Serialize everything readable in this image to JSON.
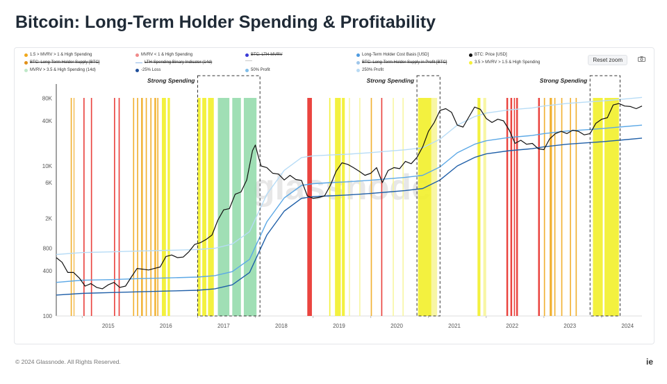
{
  "page": {
    "title": "Bitcoin: Long-Term Holder Spending & Profitability",
    "copyright": "© 2024 Glassnode. All Rights Reserved.",
    "brand": "ie",
    "watermark": "glassnode"
  },
  "toolbar": {
    "reset_zoom": "Reset zoom",
    "camera_icon": "camera-icon"
  },
  "colors": {
    "yellow": "#f2f02a",
    "lightyellow": "#f7f59a",
    "orange": "#f0a81c",
    "red": "#e8302a",
    "green": "#8fd9a8",
    "price": "#111111",
    "cost": "#1f5fa8",
    "band1": "#5ba8e6",
    "band2": "#b7dcf6"
  },
  "legend": [
    {
      "label": "1.5 > MVRV > 1 & High Spending",
      "color": "#f0a81c",
      "strike": false,
      "kind": "dot"
    },
    {
      "label": "MVRV < 1 & High Spending",
      "color": "#f08a8a",
      "strike": false,
      "kind": "dot"
    },
    {
      "label": "BTC: LTH-MVRV",
      "color": "#3a3ad6",
      "strike": true,
      "kind": "dot"
    },
    {
      "label": "Long-Term Holder Cost Basis [USD]",
      "color": "#4f9be0",
      "strike": false,
      "kind": "dot"
    },
    {
      "label": "BTC: Price [USD]",
      "color": "#111111",
      "strike": false,
      "kind": "dot"
    },
    {
      "label": "BTC: Long-Term Holder Supply [BTC]",
      "color": "#e0901a",
      "strike": true,
      "kind": "dot"
    },
    {
      "label": "LTH-Spending Binary Indicator (14d)",
      "color": "#8fb8e6",
      "strike": true,
      "kind": "line"
    },
    {
      "label": "",
      "color": "#c8c8c8",
      "strike": false,
      "kind": "line"
    },
    {
      "label": "BTC: Long-Term Holder Supply in Profit [BTC]",
      "color": "#9fc6ea",
      "strike": true,
      "kind": "dot"
    },
    {
      "label": "3.5 > MVRV > 1.5 & High Spending",
      "color": "#f6f03a",
      "strike": false,
      "kind": "dot"
    },
    {
      "label": "MVRV > 3.5 & High Spending (14d)",
      "color": "#bfe8c8",
      "strike": false,
      "kind": "dot"
    },
    {
      "label": "-25% Loss",
      "color": "#1f4f9a",
      "strike": false,
      "kind": "dot"
    },
    {
      "label": "50% Profit",
      "color": "#7fbde9",
      "strike": false,
      "kind": "dot"
    },
    {
      "label": "250% Profit",
      "color": "#b8daf4",
      "strike": false,
      "kind": "dot"
    }
  ],
  "chart_data": {
    "type": "line",
    "yscale": "log",
    "ylim": [
      100,
      100000
    ],
    "xlim": [
      2014.55,
      2024.7
    ],
    "yticks": [
      {
        "v": 100,
        "label": "100"
      },
      {
        "v": 400,
        "label": "400"
      },
      {
        "v": 800,
        "label": "800"
      },
      {
        "v": 2000,
        "label": "2K"
      },
      {
        "v": 6000,
        "label": "6K"
      },
      {
        "v": 10000,
        "label": "10K"
      },
      {
        "v": 40000,
        "label": "40K"
      },
      {
        "v": 80000,
        "label": "80K"
      }
    ],
    "xticks": [
      {
        "v": 2015,
        "label": "2015"
      },
      {
        "v": 2016,
        "label": "2016"
      },
      {
        "v": 2017,
        "label": "2017"
      },
      {
        "v": 2018,
        "label": "2018"
      },
      {
        "v": 2019,
        "label": "2019"
      },
      {
        "v": 2020,
        "label": "2020"
      },
      {
        "v": 2021,
        "label": "2021"
      },
      {
        "v": 2022,
        "label": "2022"
      },
      {
        "v": 2023,
        "label": "2023"
      },
      {
        "v": 2024,
        "label": "2024"
      }
    ],
    "annotations": [
      {
        "text": "Strong Spending",
        "x0": 2017.0,
        "x1": 2018.08
      },
      {
        "text": "Strong Spending",
        "x0": 2020.8,
        "x1": 2021.2
      },
      {
        "text": "Strong Spending",
        "x0": 2023.8,
        "x1": 2024.32
      }
    ],
    "series": [
      {
        "name": "BTC: Price [USD]",
        "color": "#111111",
        "x": [
          2014.55,
          2014.65,
          2014.75,
          2014.85,
          2014.95,
          2015.05,
          2015.15,
          2015.25,
          2015.35,
          2015.45,
          2015.55,
          2015.65,
          2015.75,
          2015.85,
          2015.95,
          2016.05,
          2016.15,
          2016.25,
          2016.35,
          2016.45,
          2016.55,
          2016.65,
          2016.75,
          2016.85,
          2016.95,
          2017.05,
          2017.15,
          2017.25,
          2017.35,
          2017.45,
          2017.55,
          2017.65,
          2017.75,
          2017.85,
          2017.95,
          2018.0,
          2018.05,
          2018.1,
          2018.2,
          2018.3,
          2018.4,
          2018.5,
          2018.6,
          2018.7,
          2018.8,
          2018.9,
          2019.0,
          2019.1,
          2019.2,
          2019.3,
          2019.4,
          2019.5,
          2019.6,
          2019.7,
          2019.8,
          2019.9,
          2020.0,
          2020.1,
          2020.2,
          2020.3,
          2020.4,
          2020.5,
          2020.6,
          2020.7,
          2020.8,
          2020.9,
          2021.0,
          2021.1,
          2021.2,
          2021.3,
          2021.4,
          2021.5,
          2021.6,
          2021.7,
          2021.8,
          2021.9,
          2022.0,
          2022.1,
          2022.2,
          2022.3,
          2022.4,
          2022.5,
          2022.6,
          2022.7,
          2022.8,
          2022.9,
          2023.0,
          2023.1,
          2023.2,
          2023.3,
          2023.4,
          2023.5,
          2023.6,
          2023.7,
          2023.8,
          2023.9,
          2024.0,
          2024.1,
          2024.2,
          2024.3,
          2024.4,
          2024.5,
          2024.6,
          2024.7
        ],
        "values": [
          600,
          520,
          380,
          380,
          320,
          250,
          270,
          240,
          230,
          260,
          280,
          240,
          250,
          330,
          430,
          420,
          410,
          430,
          450,
          620,
          650,
          600,
          610,
          720,
          900,
          950,
          1050,
          1200,
          1900,
          2600,
          2700,
          4200,
          4500,
          6500,
          16000,
          19000,
          13500,
          10000,
          9500,
          8000,
          7800,
          6500,
          7500,
          6600,
          6400,
          4000,
          3700,
          3800,
          4000,
          5500,
          8500,
          11000,
          10500,
          9500,
          8500,
          7500,
          8000,
          9500,
          6000,
          8700,
          9500,
          9200,
          11500,
          10700,
          13000,
          18000,
          29000,
          38000,
          55000,
          58000,
          52000,
          35000,
          33000,
          45000,
          61000,
          57000,
          43000,
          38000,
          42000,
          40000,
          30000,
          20000,
          22000,
          19500,
          20000,
          17000,
          16500,
          23000,
          27000,
          29000,
          27000,
          30000,
          29000,
          26000,
          27000,
          37000,
          42000,
          44000,
          65000,
          68000,
          63000,
          62000,
          58000,
          63000
        ]
      },
      {
        "name": "Long-Term Holder Cost Basis [USD]",
        "color": "#1f5fa8",
        "x": [
          2014.55,
          2015.0,
          2015.5,
          2016.0,
          2016.5,
          2017.0,
          2017.3,
          2017.6,
          2017.9,
          2018.2,
          2018.5,
          2018.8,
          2019.0,
          2019.3,
          2019.6,
          2020.0,
          2020.3,
          2020.6,
          2020.9,
          2021.2,
          2021.5,
          2021.8,
          2022.0,
          2022.4,
          2022.8,
          2023.0,
          2023.4,
          2023.8,
          2024.0,
          2024.3,
          2024.7
        ],
        "values": [
          190,
          200,
          205,
          210,
          215,
          220,
          230,
          260,
          380,
          1200,
          2500,
          3700,
          3900,
          4000,
          4100,
          4300,
          4500,
          4700,
          5000,
          6500,
          10000,
          13000,
          14500,
          16000,
          17000,
          18000,
          19500,
          20500,
          21000,
          22000,
          23500
        ]
      },
      {
        "name": "50% Profit",
        "color": "#5ba8e6",
        "x": [
          2014.55,
          2015.0,
          2015.5,
          2016.0,
          2016.5,
          2017.0,
          2017.3,
          2017.6,
          2017.9,
          2018.2,
          2018.5,
          2018.8,
          2019.0,
          2019.3,
          2019.6,
          2020.0,
          2020.3,
          2020.6,
          2020.9,
          2021.2,
          2021.5,
          2021.8,
          2022.0,
          2022.4,
          2022.8,
          2023.0,
          2023.4,
          2023.8,
          2024.0,
          2024.3,
          2024.7
        ],
        "values": [
          280,
          300,
          305,
          315,
          322,
          330,
          345,
          390,
          570,
          1800,
          3750,
          5500,
          5800,
          6000,
          6150,
          6450,
          6750,
          7050,
          7500,
          9700,
          15000,
          19500,
          21700,
          24000,
          25500,
          27000,
          29200,
          30700,
          31500,
          33000,
          35000
        ]
      },
      {
        "name": "250% Profit",
        "color": "#b7dcf6",
        "x": [
          2014.55,
          2015.0,
          2015.5,
          2016.0,
          2016.5,
          2017.0,
          2017.3,
          2017.6,
          2017.9,
          2018.2,
          2018.5,
          2018.8,
          2019.0,
          2019.3,
          2019.6,
          2020.0,
          2020.3,
          2020.6,
          2020.9,
          2021.2,
          2021.5,
          2021.8,
          2022.0,
          2022.4,
          2022.8,
          2023.0,
          2023.4,
          2023.8,
          2024.0,
          2024.3,
          2024.7
        ],
        "values": [
          660,
          700,
          715,
          735,
          750,
          770,
          800,
          910,
          1330,
          4200,
          8750,
          12950,
          13650,
          14000,
          14350,
          15050,
          15750,
          16450,
          17500,
          22750,
          35000,
          45500,
          50750,
          56000,
          59500,
          63000,
          68250,
          71750,
          73500,
          77000,
          82000
        ]
      }
    ],
    "shading": [
      {
        "x0": 2014.8,
        "x1": 2014.82,
        "color": "orange"
      },
      {
        "x0": 2014.85,
        "x1": 2014.86,
        "color": "orange"
      },
      {
        "x0": 2015.02,
        "x1": 2015.04,
        "color": "red"
      },
      {
        "x0": 2015.15,
        "x1": 2015.17,
        "color": "red"
      },
      {
        "x0": 2015.55,
        "x1": 2015.57,
        "color": "red"
      },
      {
        "x0": 2015.63,
        "x1": 2015.65,
        "color": "red"
      },
      {
        "x0": 2015.88,
        "x1": 2015.9,
        "color": "orange"
      },
      {
        "x0": 2015.95,
        "x1": 2015.97,
        "color": "orange"
      },
      {
        "x0": 2016.02,
        "x1": 2016.05,
        "color": "orange"
      },
      {
        "x0": 2016.1,
        "x1": 2016.12,
        "color": "orange"
      },
      {
        "x0": 2016.18,
        "x1": 2016.2,
        "color": "orange"
      },
      {
        "x0": 2016.25,
        "x1": 2016.28,
        "color": "orange"
      },
      {
        "x0": 2016.3,
        "x1": 2016.32,
        "color": "orange"
      },
      {
        "x0": 2016.38,
        "x1": 2016.45,
        "color": "yellow"
      },
      {
        "x0": 2016.48,
        "x1": 2016.52,
        "color": "yellow"
      },
      {
        "x0": 2017.0,
        "x1": 2017.05,
        "color": "yellow"
      },
      {
        "x0": 2017.08,
        "x1": 2017.15,
        "color": "yellow"
      },
      {
        "x0": 2017.18,
        "x1": 2017.28,
        "color": "yellow"
      },
      {
        "x0": 2017.35,
        "x1": 2017.55,
        "color": "green"
      },
      {
        "x0": 2017.6,
        "x1": 2017.75,
        "color": "green"
      },
      {
        "x0": 2017.8,
        "x1": 2018.02,
        "color": "green"
      },
      {
        "x0": 2018.9,
        "x1": 2018.98,
        "color": "red"
      },
      {
        "x0": 2019.28,
        "x1": 2019.3,
        "color": "yellow"
      },
      {
        "x0": 2019.38,
        "x1": 2019.48,
        "color": "yellow"
      },
      {
        "x0": 2019.5,
        "x1": 2019.55,
        "color": "yellow"
      },
      {
        "x0": 2019.62,
        "x1": 2019.64,
        "color": "lightyellow"
      },
      {
        "x0": 2019.8,
        "x1": 2019.82,
        "color": "lightyellow"
      },
      {
        "x0": 2020.0,
        "x1": 2020.02,
        "color": "orange"
      },
      {
        "x0": 2020.18,
        "x1": 2020.2,
        "color": "red"
      },
      {
        "x0": 2020.38,
        "x1": 2020.4,
        "color": "lightyellow"
      },
      {
        "x0": 2020.55,
        "x1": 2020.57,
        "color": "lightyellow"
      },
      {
        "x0": 2020.82,
        "x1": 2021.05,
        "color": "yellow"
      },
      {
        "x0": 2021.05,
        "x1": 2021.15,
        "color": "lightyellow"
      },
      {
        "x0": 2021.85,
        "x1": 2021.9,
        "color": "yellow"
      },
      {
        "x0": 2021.95,
        "x1": 2022.0,
        "color": "lightyellow"
      },
      {
        "x0": 2022.35,
        "x1": 2022.38,
        "color": "red"
      },
      {
        "x0": 2022.42,
        "x1": 2022.45,
        "color": "red"
      },
      {
        "x0": 2022.48,
        "x1": 2022.5,
        "color": "red"
      },
      {
        "x0": 2022.52,
        "x1": 2022.55,
        "color": "red"
      },
      {
        "x0": 2022.9,
        "x1": 2022.93,
        "color": "red"
      },
      {
        "x0": 2023.0,
        "x1": 2023.02,
        "color": "orange"
      },
      {
        "x0": 2023.1,
        "x1": 2023.14,
        "color": "orange"
      },
      {
        "x0": 2023.18,
        "x1": 2023.2,
        "color": "orange"
      },
      {
        "x0": 2023.3,
        "x1": 2023.32,
        "color": "orange"
      },
      {
        "x0": 2023.45,
        "x1": 2023.47,
        "color": "orange"
      },
      {
        "x0": 2023.55,
        "x1": 2023.57,
        "color": "orange"
      },
      {
        "x0": 2023.85,
        "x1": 2024.02,
        "color": "yellow"
      },
      {
        "x0": 2024.05,
        "x1": 2024.3,
        "color": "yellow"
      }
    ]
  }
}
